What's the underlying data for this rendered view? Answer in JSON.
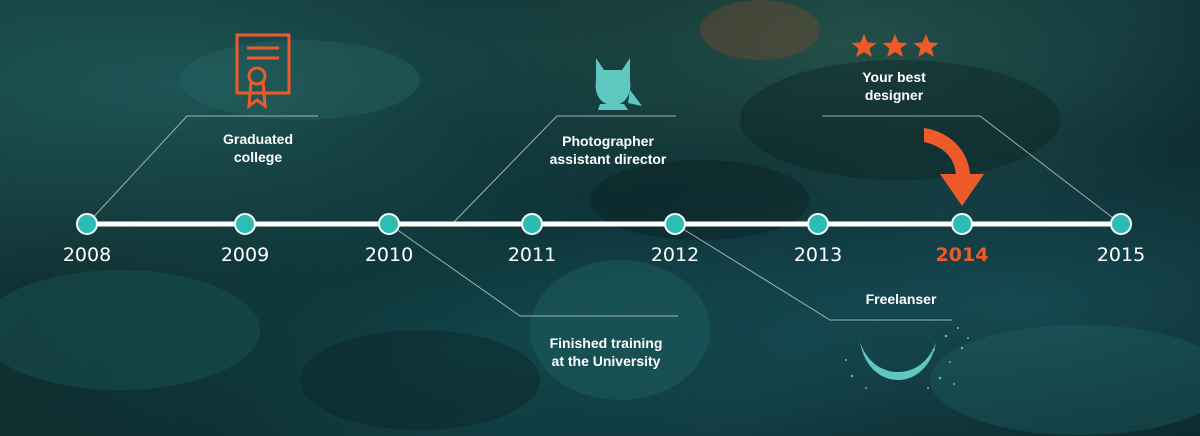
{
  "timeline": {
    "years": [
      "2008",
      "2009",
      "2010",
      "2011",
      "2012",
      "2013",
      "2014",
      "2015"
    ],
    "active_year": "2014",
    "accent_color": "#ee5a2a",
    "node_color": "#2bbcb4",
    "line_color": "#ffffff"
  },
  "events": {
    "graduated": {
      "line1": "Graduated",
      "line2": "college",
      "icon": "certificate-icon"
    },
    "photographer": {
      "line1": "Photographer",
      "line2": "assistant director",
      "icon": "owl-icon"
    },
    "best": {
      "line1": "Your best",
      "line2": "designer",
      "icon": "stars-icon"
    },
    "finished": {
      "line1": "Finished training",
      "line2": "at the University"
    },
    "freelanser": {
      "line1": "Freelanser",
      "icon": "moon-icon"
    }
  }
}
